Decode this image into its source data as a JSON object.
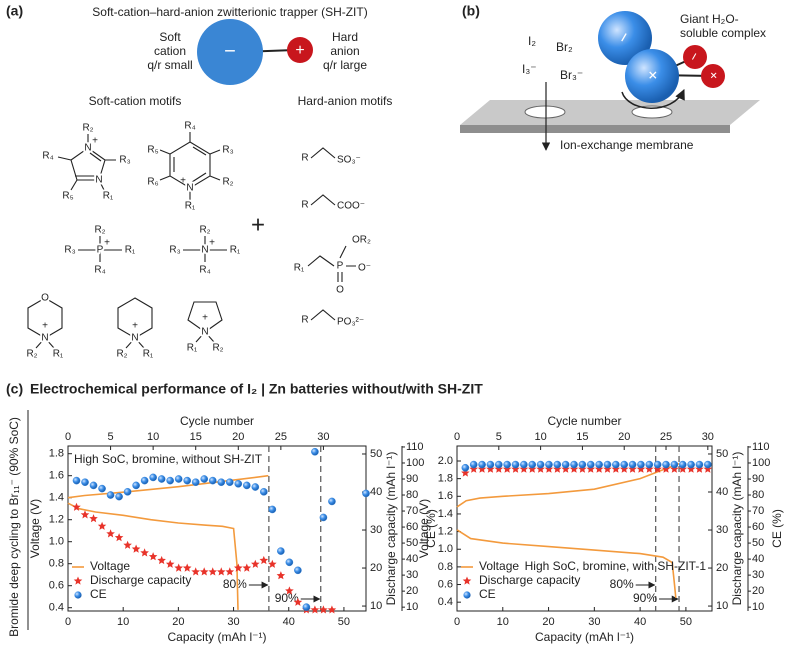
{
  "panel_a": {
    "label": "(a)",
    "title": "Soft-cation–hard-anion zwitterionic trapper (SH-ZIT)",
    "cation_sign": "−",
    "anion_sign": "+",
    "cation": [
      "Soft",
      "cation",
      "q/r small"
    ],
    "anion": [
      "Hard",
      "anion",
      "q/r large"
    ],
    "soft_cation_heading": "Soft-cation motifs",
    "hard_anion_heading": "Hard-anion motifs",
    "plus": "+",
    "cation_motifs": [
      [
        "R₂",
        "N",
        "+",
        "R₄",
        "R₃",
        "R₅",
        "N",
        "R₁"
      ],
      [
        "R₄",
        "R₅",
        "R₃",
        "R₆",
        "N",
        "+",
        "R₂",
        "R₁"
      ],
      [
        "R₂",
        "P",
        "+",
        "R₃",
        "R₁",
        "R₄"
      ],
      [
        "R₂",
        "N",
        "+",
        "R₃",
        "R₁",
        "R₄"
      ],
      [
        "O",
        "N",
        "+",
        "R₂",
        "R₁"
      ],
      [
        "N",
        "+",
        "R₂",
        "R₁"
      ],
      [
        "N",
        "+",
        "R₁",
        "R₂"
      ]
    ],
    "anion_motifs": [
      [
        "R",
        "SO₃⁻"
      ],
      [
        "R",
        "COO⁻"
      ],
      [
        "OR₂",
        "R₁",
        "P",
        "O⁻",
        "O"
      ],
      [
        "R",
        "PO₃²⁻"
      ]
    ]
  },
  "panel_b": {
    "label": "(b)",
    "species": [
      "I₂",
      "Br₂",
      "I₃⁻",
      "Br₃⁻"
    ],
    "signs": [
      "−",
      "+",
      "−",
      "+"
    ],
    "complex_label": [
      "Giant H₂O-",
      "soluble complex"
    ],
    "membrane_label": "Ion-exchange membrane"
  },
  "panel_c": {
    "label": "(c)",
    "title": "Electrochemical performance of I₂ | Zn batteries without/with SH-ZIT",
    "side_label": "Bromide deep cycling to Br₁₁⁻ (90% SoC)"
  },
  "chart_data": [
    {
      "type": "combo",
      "note": "High SoC, bromine, without SH-ZIT",
      "note_corner": "upper left",
      "xlabel": "Capacity (mAh l⁻¹)",
      "xlim": [
        0,
        54
      ],
      "xticks": [
        0,
        10,
        20,
        30,
        40,
        50
      ],
      "x2label": "Cycle number",
      "x2lim": [
        0,
        35
      ],
      "x2ticks": [
        0,
        5,
        10,
        15,
        20,
        25,
        30
      ],
      "ylabel": "Voltage (V)",
      "ylim": [
        0.37,
        1.87
      ],
      "yticks": [
        0.4,
        0.6,
        0.8,
        {
          "value": 1,
          "label": "1.0"
        },
        1.2,
        1.4,
        1.6,
        1.8
      ],
      "y2label": "Discharge capacity (mAh l⁻¹)",
      "y2lim": [
        8.7,
        52.1
      ],
      "y2ticks": [
        10,
        20,
        30,
        40,
        50
      ],
      "y3label": "CE (%)",
      "y3lim": [
        7.6,
        110.6
      ],
      "y3ticks": [
        10,
        20,
        30,
        40,
        50,
        60,
        70,
        80,
        90,
        100,
        110
      ],
      "legend": "lower left",
      "series": [
        {
          "name": "Voltage",
          "type": "line",
          "color": "#f39a3d",
          "x": [
            0,
            3,
            10,
            20,
            30,
            36.3,
            null,
            0,
            2,
            5,
            10,
            15,
            20,
            25,
            28,
            30,
            30.6,
            30.8
          ],
          "values": [
            1.4,
            1.42,
            1.45,
            1.5,
            1.56,
            1.6,
            null,
            1.35,
            1.3,
            1.27,
            1.24,
            1.2,
            1.17,
            1.15,
            1.14,
            1.12,
            0.8,
            0.38
          ]
        },
        {
          "name": "Discharge capacity",
          "type": "scatter",
          "marker": "star",
          "color": "#e8332a",
          "axis": "y2",
          "xaxis": "x2",
          "x": [
            1,
            2,
            3,
            4,
            5,
            6,
            7,
            8,
            9,
            10,
            11,
            12,
            13,
            14,
            15,
            16,
            17,
            18,
            19,
            20,
            21,
            22,
            23,
            24,
            25,
            26,
            27,
            28,
            29,
            30,
            31
          ],
          "values": [
            36,
            34,
            33,
            31,
            29,
            28,
            26,
            25,
            24,
            23,
            22,
            21,
            20,
            20,
            19,
            19,
            19,
            19,
            19,
            20,
            20,
            21,
            22,
            21,
            18,
            14,
            11,
            9,
            9,
            9,
            9
          ]
        },
        {
          "name": "CE",
          "type": "scatter",
          "marker": "circle",
          "color": "#2f7fd6",
          "axis": "y3",
          "xaxis": "x2",
          "x": [
            1,
            2,
            3,
            4,
            5,
            6,
            7,
            8,
            9,
            10,
            11,
            12,
            13,
            14,
            15,
            16,
            17,
            18,
            19,
            20,
            21,
            22,
            23,
            24,
            25,
            26,
            27,
            28,
            29,
            30,
            31,
            35
          ],
          "values": [
            89,
            88,
            86,
            84,
            80,
            79,
            82,
            86,
            89,
            91,
            90,
            89,
            90,
            89,
            88,
            90,
            89,
            88,
            88,
            87,
            86,
            85,
            82,
            71,
            45,
            38,
            33,
            10,
            107,
            66,
            76,
            81
          ]
        }
      ],
      "markers": [
        {
          "label": "80%",
          "x": 36.4
        },
        {
          "label": "90%",
          "x": 45.8
        }
      ]
    },
    {
      "type": "combo",
      "note": "High SoC, bromine, with SH-ZIT-1",
      "note_corner": "lower right",
      "xlabel": "Capacity (mAh l⁻¹)",
      "xlim": [
        0,
        55.7
      ],
      "xticks": [
        0,
        10,
        20,
        30,
        40,
        50
      ],
      "x2label": "Cycle number",
      "x2lim": [
        0,
        30.5
      ],
      "x2ticks": [
        0,
        5,
        10,
        15,
        20,
        25,
        30
      ],
      "ylabel": "Voltage (V)",
      "ylim": [
        0.3,
        2.17
      ],
      "yticks": [
        0.4,
        0.6,
        0.8,
        {
          "value": 1,
          "label": "1.0"
        },
        1.2,
        1.4,
        1.6,
        1.8,
        {
          "value": 2,
          "label": "2.0"
        }
      ],
      "y2label": "Discharge capacity (mAh l⁻¹)",
      "y2lim": [
        8.7,
        52.1
      ],
      "y2ticks": [
        10,
        20,
        30,
        40,
        50
      ],
      "y3label": "CE (%)",
      "y3lim": [
        7.6,
        110.6
      ],
      "y3ticks": [
        10,
        20,
        30,
        40,
        50,
        60,
        70,
        80,
        90,
        100,
        110
      ],
      "legend": "lower left",
      "series": [
        {
          "name": "Voltage",
          "type": "line",
          "color": "#f39a3d",
          "x": [
            0,
            2,
            5,
            10,
            20,
            30,
            40,
            45,
            48.5,
            null,
            0,
            3,
            10,
            20,
            30,
            40,
            45,
            47,
            47.5,
            47.8
          ],
          "values": [
            1.48,
            1.55,
            1.58,
            1.6,
            1.63,
            1.68,
            1.8,
            1.9,
            1.97,
            null,
            1.22,
            1.12,
            1.07,
            1.03,
            0.99,
            0.95,
            0.91,
            0.85,
            0.6,
            0.45
          ]
        },
        {
          "name": "Discharge capacity",
          "type": "scatter",
          "marker": "star",
          "color": "#e8332a",
          "axis": "y2",
          "xaxis": "x2",
          "x": [
            1,
            2,
            3,
            4,
            5,
            6,
            7,
            8,
            9,
            10,
            11,
            12,
            13,
            14,
            15,
            16,
            17,
            18,
            19,
            20,
            21,
            22,
            23,
            24,
            25,
            26,
            27,
            28,
            29,
            30
          ],
          "values": [
            45,
            46,
            46,
            46,
            46,
            46,
            46,
            46,
            46,
            46,
            46,
            46,
            46,
            46,
            46,
            46,
            46,
            46,
            46,
            46,
            46,
            46,
            46,
            46,
            46,
            46,
            46,
            46,
            46,
            46
          ]
        },
        {
          "name": "CE",
          "type": "scatter",
          "marker": "circle",
          "color": "#2f7fd6",
          "axis": "y3",
          "xaxis": "x2",
          "x": [
            1,
            2,
            3,
            4,
            5,
            6,
            7,
            8,
            9,
            10,
            11,
            12,
            13,
            14,
            15,
            16,
            17,
            18,
            19,
            20,
            21,
            22,
            23,
            24,
            25,
            26,
            27,
            28,
            29,
            30
          ],
          "values": [
            97,
            99,
            99,
            99,
            99,
            99,
            99,
            99,
            99,
            99,
            99,
            99,
            99,
            99,
            99,
            99,
            99,
            99,
            99,
            99,
            99,
            99,
            99,
            99,
            99,
            99,
            99,
            99,
            99,
            99
          ]
        }
      ],
      "markers": [
        {
          "label": "80%",
          "x": 43.4
        },
        {
          "label": "90%",
          "x": 48.5
        }
      ]
    }
  ]
}
